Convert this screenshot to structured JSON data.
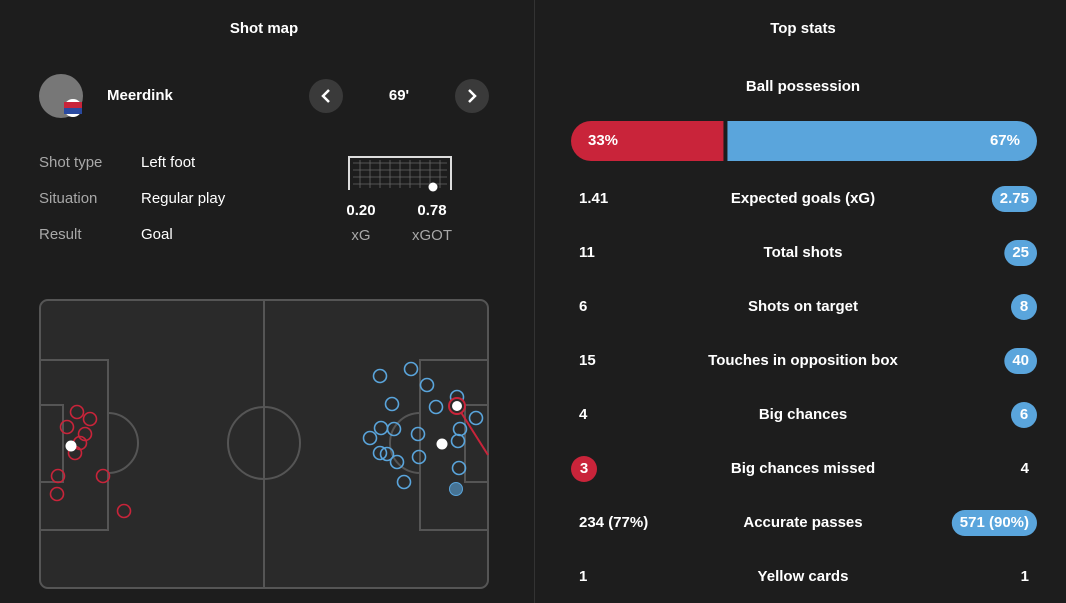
{
  "shot_map": {
    "title": "Shot map",
    "player": "Meerdink",
    "minute": "69'",
    "details": [
      {
        "label": "Shot type",
        "value": "Left foot"
      },
      {
        "label": "Situation",
        "value": "Regular play"
      },
      {
        "label": "Result",
        "value": "Goal"
      }
    ],
    "xg": {
      "value": "0.20",
      "label": "xG"
    },
    "xgot": {
      "value": "0.78",
      "label": "xGOT"
    }
  },
  "top_stats": {
    "title": "Top stats",
    "possession": {
      "title": "Ball possession",
      "home": {
        "value": 33,
        "label": "33%",
        "color": "#c9243a"
      },
      "away": {
        "value": 67,
        "label": "67%",
        "color": "#5aa5dc"
      }
    },
    "rows": [
      {
        "home": "1.41",
        "name": "Expected goals (xG)",
        "away": "2.75",
        "highlight": "away"
      },
      {
        "home": "11",
        "name": "Total shots",
        "away": "25",
        "highlight": "away"
      },
      {
        "home": "6",
        "name": "Shots on target",
        "away": "8",
        "highlight": "away"
      },
      {
        "home": "15",
        "name": "Touches in opposition box",
        "away": "40",
        "highlight": "away"
      },
      {
        "home": "4",
        "name": "Big chances",
        "away": "6",
        "highlight": "away"
      },
      {
        "home": "3",
        "name": "Big chances missed",
        "away": "4",
        "highlight": "home"
      },
      {
        "home": "234 (77%)",
        "name": "Accurate passes",
        "away": "571 (90%)",
        "highlight": "away"
      },
      {
        "home": "1",
        "name": "Yellow cards",
        "away": "1",
        "highlight": "none"
      }
    ]
  }
}
